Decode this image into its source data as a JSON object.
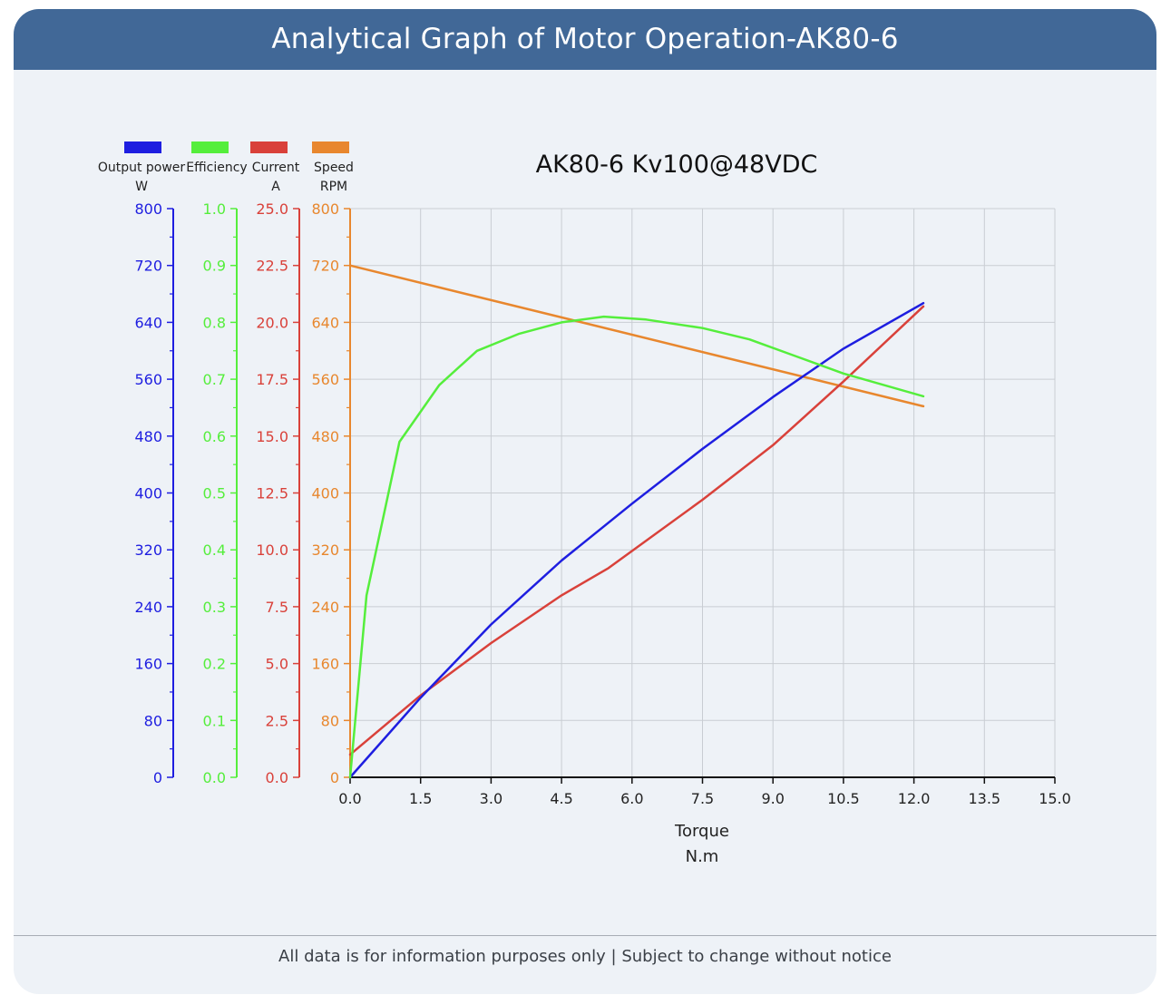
{
  "header": {
    "title": "Analytical Graph of Motor Operation-AK80-6"
  },
  "footer": {
    "text": "All data is for information purposes only | Subject to change without notice"
  },
  "colors": {
    "header_bg": "#416897",
    "card_bg": "#eef2f7",
    "power": "#1e1ee0",
    "efficiency": "#55ee3c",
    "current": "#d9413a",
    "speed": "#e8872e"
  },
  "chart_data": {
    "type": "line",
    "title": "AK80-6 Kv100@48VDC",
    "xlabel": "Torque",
    "xunit": "N.m",
    "xlim": [
      0,
      15
    ],
    "xticks": [
      "0.0",
      "1.5",
      "3.0",
      "4.5",
      "6.0",
      "7.5",
      "9.0",
      "10.5",
      "12.0",
      "13.5",
      "15.0"
    ],
    "grid": true,
    "legend_position": "top-left",
    "axes": [
      {
        "id": "power",
        "name": "Output power",
        "unit": "W",
        "color": "#1e1ee0",
        "lim": [
          0,
          800
        ],
        "ticks": [
          "0",
          "80",
          "160",
          "240",
          "320",
          "400",
          "480",
          "560",
          "640",
          "720",
          "800"
        ]
      },
      {
        "id": "efficiency",
        "name": "Efficiency",
        "unit": "",
        "color": "#55ee3c",
        "lim": [
          0,
          1
        ],
        "ticks": [
          "0.0",
          "0.1",
          "0.2",
          "0.3",
          "0.4",
          "0.5",
          "0.6",
          "0.7",
          "0.8",
          "0.9",
          "1.0"
        ]
      },
      {
        "id": "current",
        "name": "Current",
        "unit": "A",
        "color": "#d9413a",
        "lim": [
          0,
          25
        ],
        "ticks": [
          "0.0",
          "2.5",
          "5.0",
          "7.5",
          "10.0",
          "12.5",
          "15.0",
          "17.5",
          "20.0",
          "22.5",
          "25.0"
        ]
      },
      {
        "id": "speed",
        "name": "Speed",
        "unit": "RPM",
        "color": "#e8872e",
        "lim": [
          0,
          800
        ],
        "ticks": [
          "0",
          "80",
          "160",
          "240",
          "320",
          "400",
          "480",
          "560",
          "640",
          "720",
          "800"
        ]
      }
    ],
    "series": [
      {
        "name": "Output power",
        "axis": "power",
        "color": "#1e1ee0",
        "x": [
          0,
          1.5,
          3.0,
          4.5,
          6.0,
          7.5,
          9.0,
          10.5,
          12.2
        ],
        "y": [
          0,
          112,
          215,
          305,
          385,
          462,
          535,
          603,
          667
        ]
      },
      {
        "name": "Efficiency",
        "axis": "efficiency",
        "color": "#55ee3c",
        "x": [
          0,
          0.35,
          1.05,
          1.9,
          2.7,
          3.6,
          4.5,
          5.4,
          6.3,
          7.5,
          8.5,
          9.5,
          10.5,
          12.2
        ],
        "y": [
          0,
          0.32,
          0.59,
          0.69,
          0.75,
          0.78,
          0.8,
          0.81,
          0.805,
          0.79,
          0.77,
          0.74,
          0.71,
          0.67
        ]
      },
      {
        "name": "Current",
        "axis": "current",
        "color": "#d9413a",
        "x": [
          0,
          1.5,
          3.0,
          4.5,
          5.5,
          7.5,
          9.0,
          10.5,
          12.2
        ],
        "y": [
          1.0,
          3.6,
          5.9,
          8.0,
          9.2,
          12.2,
          14.6,
          17.4,
          20.7
        ]
      },
      {
        "name": "Speed",
        "axis": "speed",
        "color": "#e8872e",
        "x": [
          0,
          12.2
        ],
        "y": [
          720,
          522
        ]
      }
    ]
  }
}
